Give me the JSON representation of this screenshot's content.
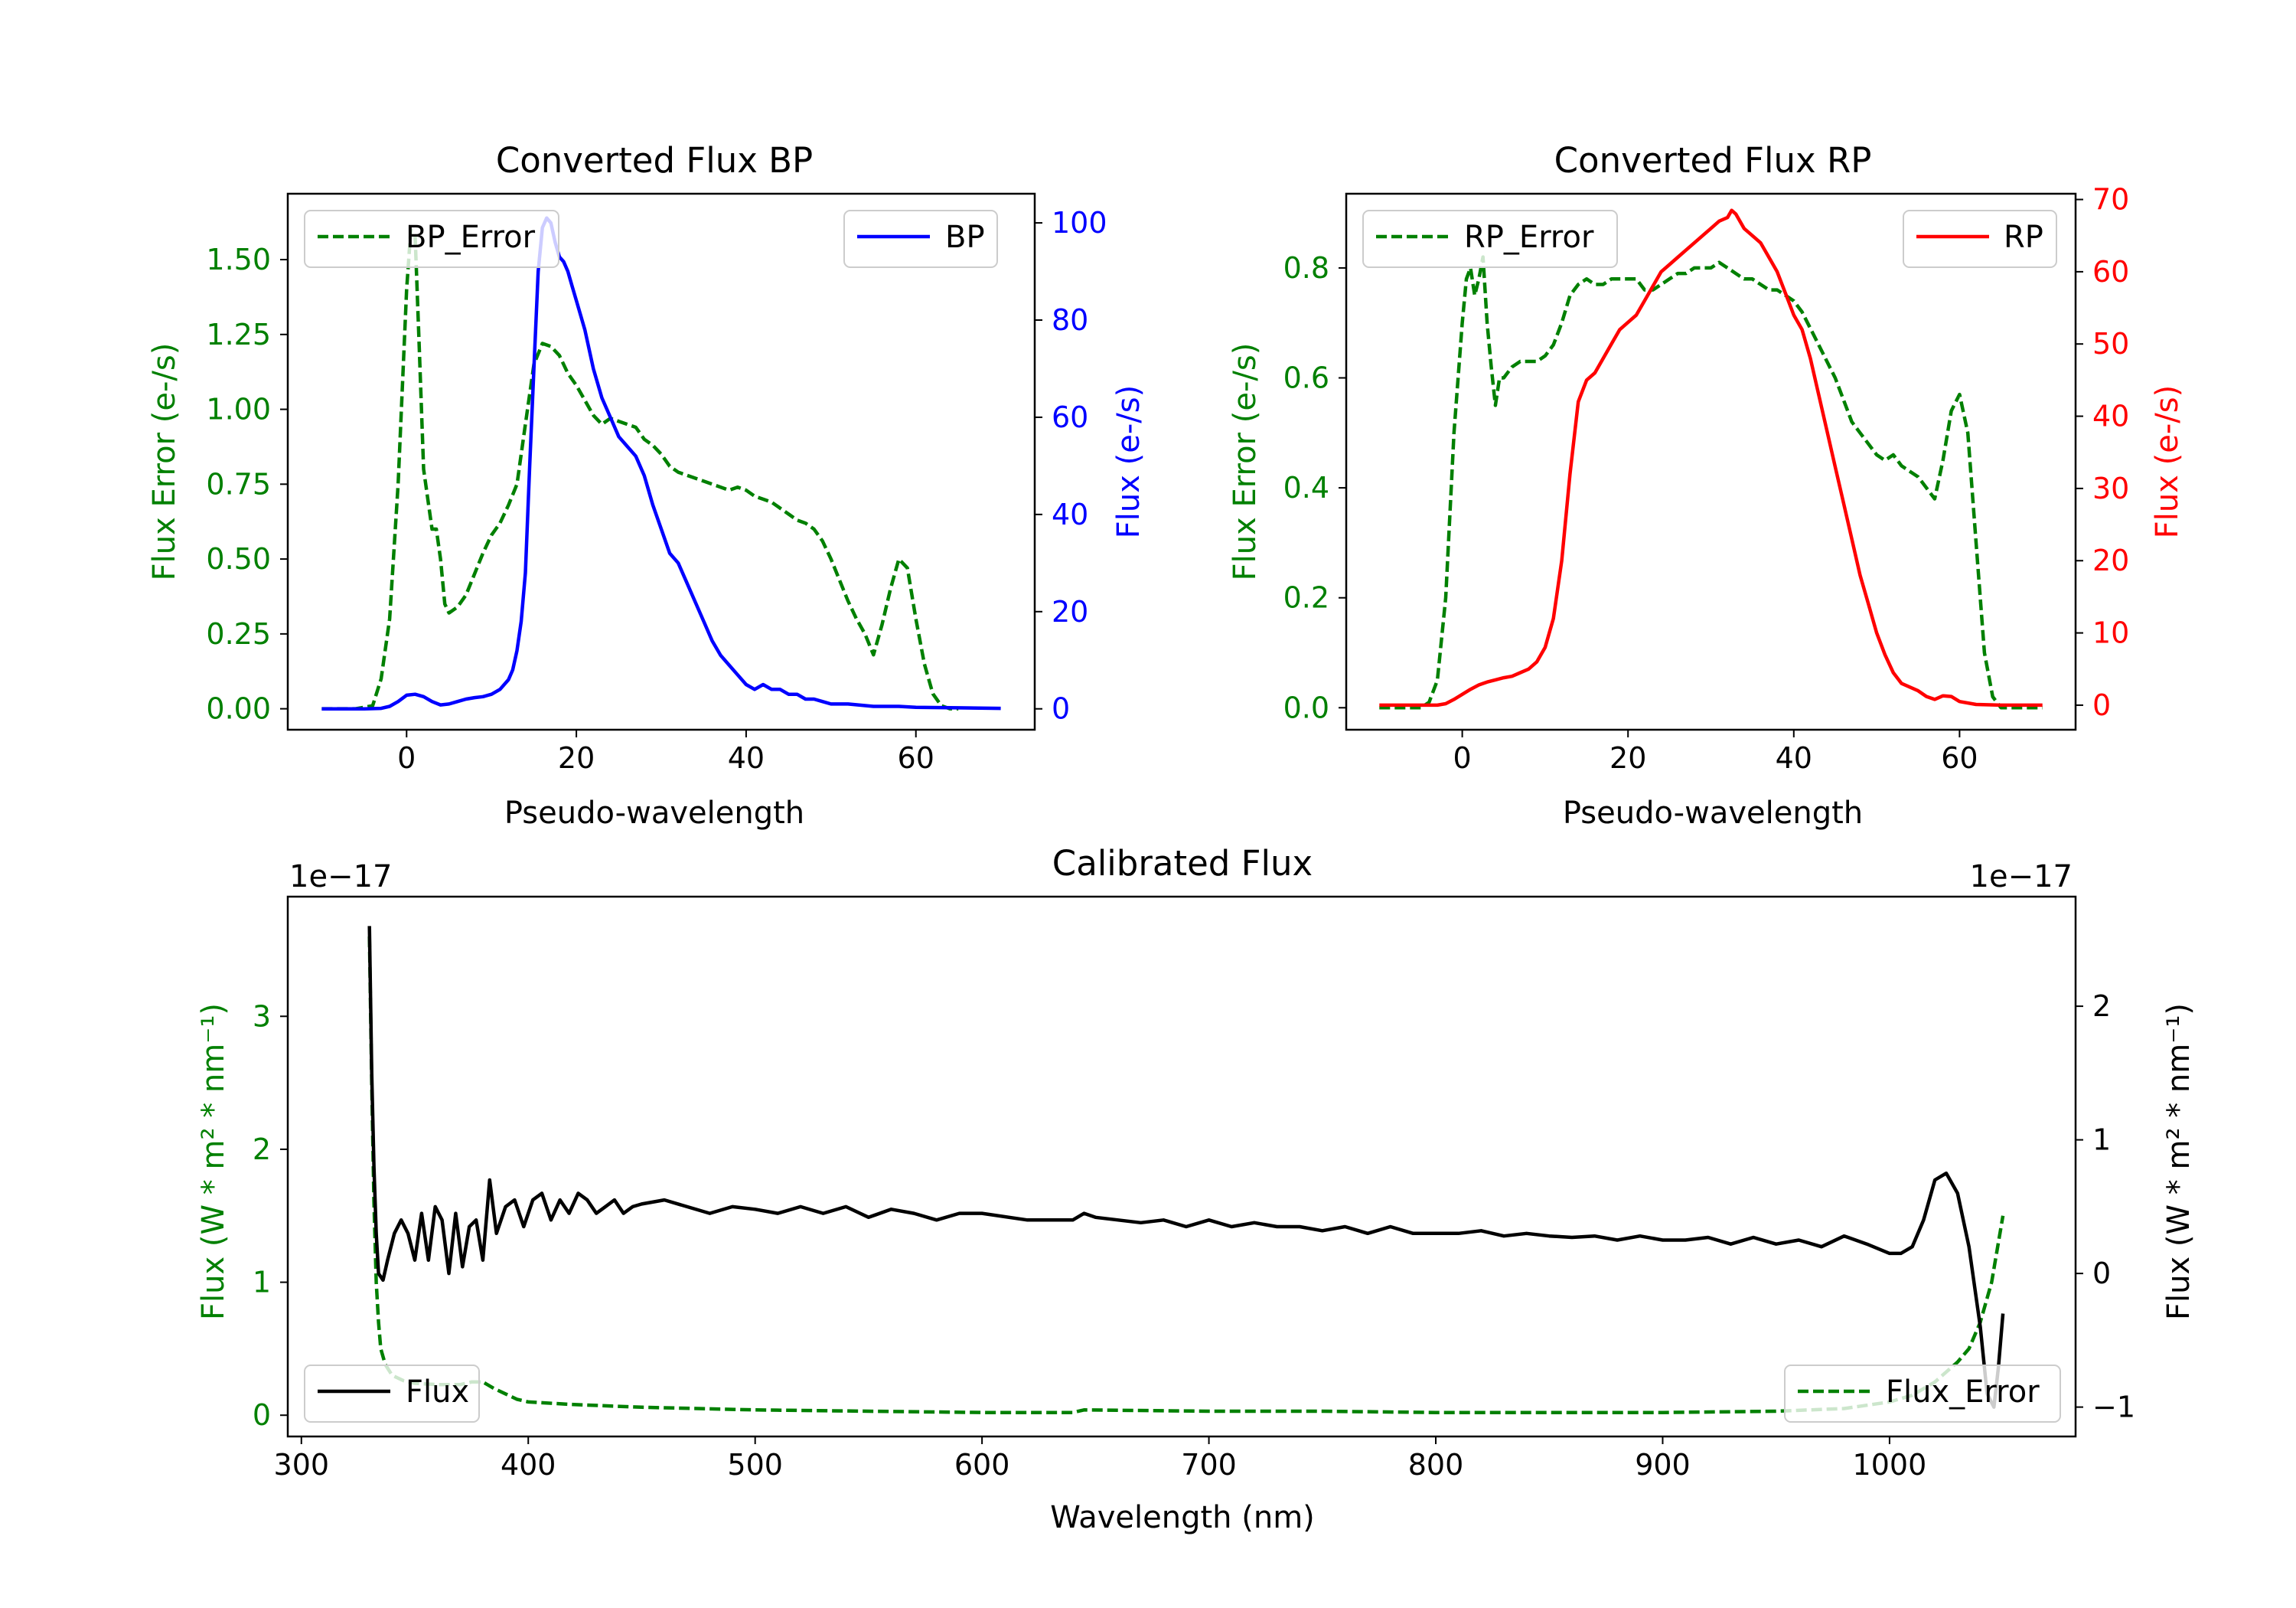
{
  "colors": {
    "bp": "#0000ff",
    "rp": "#ff0000",
    "error": "#008000",
    "flux": "#000000",
    "axis": "#000000"
  },
  "chart_data": [
    {
      "id": "bp",
      "type": "line",
      "title": "Converted Flux BP",
      "xlabel": "Pseudo-wavelength",
      "ylabel_left": "Flux Error (e-/s)",
      "ylabel_right": "Flux (e-/s)",
      "xlim": [
        -14,
        74
      ],
      "ylim_left": [
        -0.07,
        1.72
      ],
      "ylim_right": [
        -4.3,
        106
      ],
      "xticks": [
        0,
        20,
        40,
        60
      ],
      "yticks_left": [
        0.0,
        0.25,
        0.5,
        0.75,
        1.0,
        1.25,
        1.5
      ],
      "yticks_left_labels": [
        "0.00",
        "0.25",
        "0.50",
        "0.75",
        "1.00",
        "1.25",
        "1.50"
      ],
      "yticks_right": [
        0,
        20,
        40,
        60,
        80,
        100
      ],
      "legend_left": "BP_Error",
      "legend_right": "BP",
      "legend_left_position": "upper left",
      "legend_right_position": "upper right",
      "series": [
        {
          "name": "BP_Error",
          "axis": "left",
          "style": "dashed",
          "color_key": "error",
          "x": [
            -10,
            -6,
            -4,
            -3,
            -2,
            -1,
            0,
            0.5,
            1,
            1.5,
            2,
            3,
            3.5,
            4,
            4.5,
            5,
            6,
            7,
            8,
            9,
            10,
            11,
            12,
            13,
            14,
            15,
            16,
            17,
            18,
            19,
            20,
            21,
            22,
            23,
            24,
            25,
            26,
            27,
            28,
            29,
            30,
            31,
            32,
            33,
            34,
            35,
            36,
            37,
            38,
            39,
            40,
            41,
            42,
            43,
            44,
            45,
            46,
            47,
            48,
            49,
            50,
            51,
            52,
            53,
            54,
            55,
            56,
            57,
            58,
            59,
            60,
            61,
            62,
            63,
            64,
            65
          ],
          "y": [
            0,
            0,
            0.01,
            0.1,
            0.3,
            0.75,
            1.4,
            1.6,
            1.58,
            1.2,
            0.8,
            0.6,
            0.6,
            0.5,
            0.35,
            0.32,
            0.34,
            0.38,
            0.45,
            0.52,
            0.58,
            0.62,
            0.68,
            0.75,
            0.95,
            1.15,
            1.22,
            1.21,
            1.18,
            1.12,
            1.08,
            1.03,
            0.98,
            0.95,
            0.97,
            0.96,
            0.95,
            0.94,
            0.9,
            0.88,
            0.85,
            0.81,
            0.79,
            0.78,
            0.77,
            0.76,
            0.75,
            0.74,
            0.73,
            0.74,
            0.73,
            0.71,
            0.7,
            0.69,
            0.67,
            0.65,
            0.63,
            0.62,
            0.6,
            0.56,
            0.5,
            0.43,
            0.36,
            0.3,
            0.25,
            0.18,
            0.28,
            0.4,
            0.5,
            0.47,
            0.3,
            0.15,
            0.05,
            0.01,
            0,
            0
          ]
        },
        {
          "name": "BP",
          "axis": "right",
          "style": "solid",
          "color_key": "bp",
          "x": [
            -10,
            -5,
            -3,
            -2,
            -1,
            0,
            1,
            2,
            3,
            4,
            5,
            6,
            7,
            8,
            9,
            10,
            11,
            12,
            12.5,
            13,
            13.5,
            14,
            14.5,
            15,
            15.5,
            16,
            16.5,
            17,
            17.5,
            18,
            18.5,
            19,
            19.5,
            20,
            21,
            22,
            23,
            24,
            25,
            26,
            27,
            28,
            29,
            30,
            31,
            32,
            33,
            34,
            35,
            36,
            37,
            38,
            39,
            40,
            41,
            42,
            43,
            44,
            45,
            46,
            47,
            48,
            49,
            50,
            52,
            55,
            58,
            60,
            65,
            70
          ],
          "y": [
            0,
            0,
            0.1,
            0.5,
            1.5,
            2.8,
            3,
            2.5,
            1.5,
            0.8,
            1,
            1.5,
            2,
            2.3,
            2.5,
            3,
            4,
            6,
            8,
            12,
            18,
            28,
            50,
            70,
            90,
            99,
            101,
            100,
            96,
            93,
            92,
            90,
            87,
            84,
            78,
            70,
            64,
            60,
            56,
            54,
            52,
            48,
            42,
            37,
            32,
            30,
            26,
            22,
            18,
            14,
            11,
            9,
            7,
            5,
            4,
            5,
            4,
            4,
            3,
            3,
            2,
            2,
            1.5,
            1,
            1,
            0.5,
            0.5,
            0.3,
            0.2,
            0.1
          ]
        }
      ]
    },
    {
      "id": "rp",
      "type": "line",
      "title": "Converted Flux RP",
      "xlabel": "Pseudo-wavelength",
      "ylabel_left": "Flux Error (e-/s)",
      "ylabel_right": "Flux (e-/s)",
      "xlim": [
        -14,
        74
      ],
      "ylim_left": [
        -0.04,
        0.935
      ],
      "ylim_right": [
        -3.4,
        70.8
      ],
      "xticks": [
        0,
        20,
        40,
        60
      ],
      "yticks_left": [
        0.0,
        0.2,
        0.4,
        0.6,
        0.8
      ],
      "yticks_left_labels": [
        "0.0",
        "0.2",
        "0.4",
        "0.6",
        "0.8"
      ],
      "yticks_right": [
        0,
        10,
        20,
        30,
        40,
        50,
        60,
        70
      ],
      "legend_left": "RP_Error",
      "legend_right": "RP",
      "legend_left_position": "upper left",
      "legend_right_position": "upper right",
      "series": [
        {
          "name": "RP_Error",
          "axis": "left",
          "style": "dashed",
          "color_key": "error",
          "x": [
            -10,
            -5,
            -4,
            -3,
            -2,
            -1,
            0,
            0.5,
            1,
            1.5,
            2,
            2.5,
            3,
            3.5,
            4,
            4.5,
            5,
            6,
            7,
            8,
            9,
            10,
            11,
            12,
            13,
            14,
            15,
            16,
            17,
            18,
            19,
            20,
            21,
            22,
            23,
            24,
            25,
            26,
            27,
            28,
            29,
            30,
            31,
            32,
            33,
            34,
            35,
            36,
            37,
            38,
            39,
            40,
            41,
            42,
            43,
            44,
            45,
            46,
            47,
            48,
            49,
            50,
            51,
            52,
            53,
            54,
            55,
            56,
            57,
            58,
            59,
            60,
            61,
            62,
            63,
            64,
            65,
            70
          ],
          "y": [
            0,
            0,
            0.01,
            0.05,
            0.2,
            0.5,
            0.7,
            0.78,
            0.8,
            0.75,
            0.78,
            0.82,
            0.7,
            0.62,
            0.55,
            0.6,
            0.6,
            0.62,
            0.63,
            0.63,
            0.63,
            0.64,
            0.66,
            0.7,
            0.75,
            0.77,
            0.78,
            0.77,
            0.77,
            0.78,
            0.78,
            0.78,
            0.78,
            0.76,
            0.76,
            0.77,
            0.78,
            0.79,
            0.79,
            0.8,
            0.8,
            0.8,
            0.81,
            0.8,
            0.79,
            0.78,
            0.78,
            0.77,
            0.76,
            0.76,
            0.75,
            0.74,
            0.72,
            0.69,
            0.66,
            0.63,
            0.6,
            0.56,
            0.52,
            0.5,
            0.48,
            0.46,
            0.45,
            0.46,
            0.44,
            0.43,
            0.42,
            0.4,
            0.38,
            0.45,
            0.54,
            0.57,
            0.5,
            0.3,
            0.1,
            0.02,
            0,
            0
          ]
        },
        {
          "name": "RP",
          "axis": "right",
          "style": "solid",
          "color_key": "rp",
          "x": [
            -10,
            -3,
            -2,
            -1,
            0,
            1,
            2,
            3,
            4,
            5,
            6,
            7,
            8,
            9,
            10,
            11,
            12,
            13,
            14,
            15,
            16,
            17,
            18,
            19,
            20,
            21,
            22,
            23,
            24,
            25,
            26,
            27,
            28,
            29,
            30,
            31,
            32,
            32.5,
            33,
            34,
            35,
            36,
            37,
            38,
            39,
            40,
            41,
            42,
            43,
            44,
            45,
            46,
            47,
            48,
            49,
            50,
            51,
            52,
            53,
            54,
            55,
            56,
            57,
            58,
            59,
            60,
            62,
            65,
            70
          ],
          "y": [
            0,
            0,
            0.2,
            0.8,
            1.5,
            2.2,
            2.8,
            3.2,
            3.5,
            3.8,
            4,
            4.5,
            5,
            6,
            8,
            12,
            20,
            32,
            42,
            45,
            46,
            48,
            50,
            52,
            53,
            54,
            56,
            58,
            60,
            61,
            62,
            63,
            64,
            65,
            66,
            67,
            67.5,
            68.5,
            68,
            66,
            65,
            64,
            62,
            60,
            57,
            54,
            52,
            48,
            43,
            38,
            33,
            28,
            23,
            18,
            14,
            10,
            7,
            4.5,
            3,
            2.5,
            2,
            1.2,
            0.8,
            1.3,
            1.2,
            0.5,
            0.1,
            0,
            0
          ]
        }
      ]
    },
    {
      "id": "calibrated",
      "type": "line",
      "title": "Calibrated Flux",
      "xlabel": "Wavelength (nm)",
      "ylabel_left": "Flux (W * m² * nm⁻¹)",
      "ylabel_right": "Flux (W * m² * nm⁻¹)",
      "offset_left": "1e−17",
      "offset_right": "1e−17",
      "xlim": [
        294,
        1082
      ],
      "ylim_left": [
        -0.16,
        3.9
      ],
      "ylim_right": [
        -1.22,
        2.82
      ],
      "xticks": [
        300,
        400,
        500,
        600,
        700,
        800,
        900,
        1000
      ],
      "yticks_left": [
        0,
        1,
        2,
        3
      ],
      "yticks_left_labels": [
        "0",
        "1",
        "2",
        "3"
      ],
      "yticks_right": [
        -1,
        0,
        1,
        2
      ],
      "yticks_right_labels": [
        "−1",
        "0",
        "1",
        "2"
      ],
      "legend_left": "Flux",
      "legend_right": "Flux_Error",
      "legend_left_position": "lower left",
      "legend_right_position": "lower right",
      "series": [
        {
          "name": "Flux_Error",
          "axis": "left",
          "style": "dashed",
          "color_key": "error",
          "x": [
            330,
            331,
            332,
            333,
            334,
            335,
            337,
            340,
            345,
            350,
            360,
            370,
            375,
            380,
            385,
            390,
            395,
            400,
            420,
            450,
            500,
            550,
            600,
            640,
            645,
            700,
            750,
            800,
            850,
            900,
            950,
            980,
            1000,
            1010,
            1020,
            1030,
            1035,
            1040,
            1045,
            1050
          ],
          "y": [
            3.6,
            2.5,
            1.6,
            1.0,
            0.7,
            0.5,
            0.38,
            0.3,
            0.26,
            0.24,
            0.23,
            0.23,
            0.25,
            0.25,
            0.2,
            0.16,
            0.12,
            0.1,
            0.08,
            0.06,
            0.04,
            0.03,
            0.02,
            0.02,
            0.04,
            0.03,
            0.03,
            0.02,
            0.02,
            0.02,
            0.03,
            0.05,
            0.1,
            0.15,
            0.25,
            0.4,
            0.5,
            0.7,
            1.0,
            1.5
          ]
        },
        {
          "name": "Flux",
          "axis": "right",
          "style": "solid",
          "color_key": "flux",
          "x": [
            330,
            331,
            332,
            333,
            334,
            336,
            338,
            341,
            344,
            347,
            350,
            353,
            356,
            359,
            362,
            365,
            368,
            371,
            374,
            377,
            380,
            383,
            386,
            390,
            394,
            398,
            402,
            406,
            410,
            414,
            418,
            422,
            426,
            430,
            434,
            438,
            442,
            446,
            450,
            460,
            470,
            480,
            490,
            500,
            510,
            520,
            530,
            540,
            550,
            560,
            570,
            580,
            590,
            600,
            620,
            640,
            645,
            650,
            660,
            670,
            680,
            690,
            700,
            710,
            720,
            730,
            740,
            750,
            760,
            770,
            780,
            790,
            800,
            810,
            820,
            830,
            840,
            850,
            860,
            870,
            880,
            890,
            900,
            910,
            920,
            930,
            940,
            950,
            960,
            970,
            980,
            990,
            1000,
            1005,
            1010,
            1015,
            1020,
            1025,
            1030,
            1035,
            1040,
            1043,
            1046,
            1048,
            1050
          ],
          "y": [
            2.6,
            1.5,
            0.8,
            0.3,
            0.0,
            -0.05,
            0.1,
            0.3,
            0.4,
            0.3,
            0.1,
            0.45,
            0.1,
            0.5,
            0.4,
            0.0,
            0.45,
            0.05,
            0.35,
            0.4,
            0.1,
            0.7,
            0.3,
            0.5,
            0.55,
            0.35,
            0.55,
            0.6,
            0.4,
            0.55,
            0.45,
            0.6,
            0.55,
            0.45,
            0.5,
            0.55,
            0.45,
            0.5,
            0.52,
            0.55,
            0.5,
            0.45,
            0.5,
            0.48,
            0.45,
            0.5,
            0.45,
            0.5,
            0.42,
            0.48,
            0.45,
            0.4,
            0.45,
            0.45,
            0.4,
            0.4,
            0.45,
            0.42,
            0.4,
            0.38,
            0.4,
            0.35,
            0.4,
            0.35,
            0.38,
            0.35,
            0.35,
            0.32,
            0.35,
            0.3,
            0.35,
            0.3,
            0.3,
            0.3,
            0.32,
            0.28,
            0.3,
            0.28,
            0.27,
            0.28,
            0.25,
            0.28,
            0.25,
            0.25,
            0.27,
            0.22,
            0.27,
            0.22,
            0.25,
            0.2,
            0.28,
            0.22,
            0.15,
            0.15,
            0.2,
            0.4,
            0.7,
            0.75,
            0.6,
            0.2,
            -0.4,
            -0.9,
            -1.0,
            -0.7,
            -0.3
          ]
        }
      ]
    }
  ]
}
